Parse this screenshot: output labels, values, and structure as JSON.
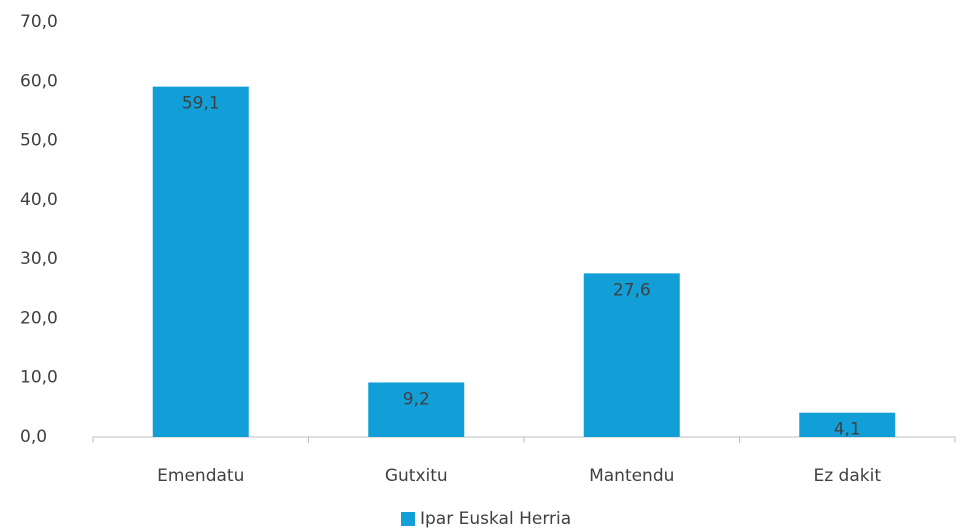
{
  "chart_data": {
    "type": "bar",
    "categories": [
      "Emendatu",
      "Gutxitu",
      "Mantendu",
      "Ez dakit"
    ],
    "series": [
      {
        "name": "Ipar Euskal Herria",
        "color": "#129fd8",
        "values": [
          59.1,
          9.2,
          27.6,
          4.1
        ],
        "value_labels": [
          "59,1",
          "9,2",
          "27,6",
          "4,1"
        ]
      }
    ],
    "ylim": [
      0,
      70
    ],
    "yticks": [
      {
        "value": 0,
        "label": "0,0"
      },
      {
        "value": 10,
        "label": "10,0"
      },
      {
        "value": 20,
        "label": "20,0"
      },
      {
        "value": 30,
        "label": "30,0"
      },
      {
        "value": 40,
        "label": "40,0"
      },
      {
        "value": 50,
        "label": "50,0"
      },
      {
        "value": 60,
        "label": "60,0"
      },
      {
        "value": 70,
        "label": "70,0"
      }
    ],
    "grid": false,
    "legend": "bottom"
  }
}
